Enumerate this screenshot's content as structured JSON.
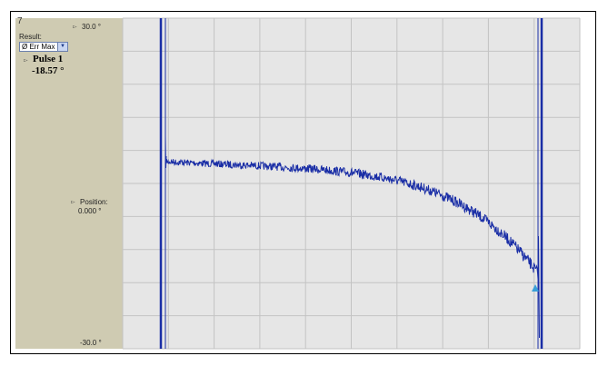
{
  "panel": {
    "corner_mark": "7",
    "result_label": "Result:",
    "result_select": "Ø Err Max",
    "pulse_name": "Pulse 1",
    "pulse_value": "-18.57 °",
    "y_top_label": "30.0 °",
    "position_label": "Position:",
    "position_value": "0.000 °",
    "y_bottom_label": "-30.0 °"
  },
  "colors": {
    "panel": "#cfcbb2",
    "plot_bg": "#e6e6e6",
    "grid": "#c3c3c3",
    "trace": "#1a2ea6"
  }
}
